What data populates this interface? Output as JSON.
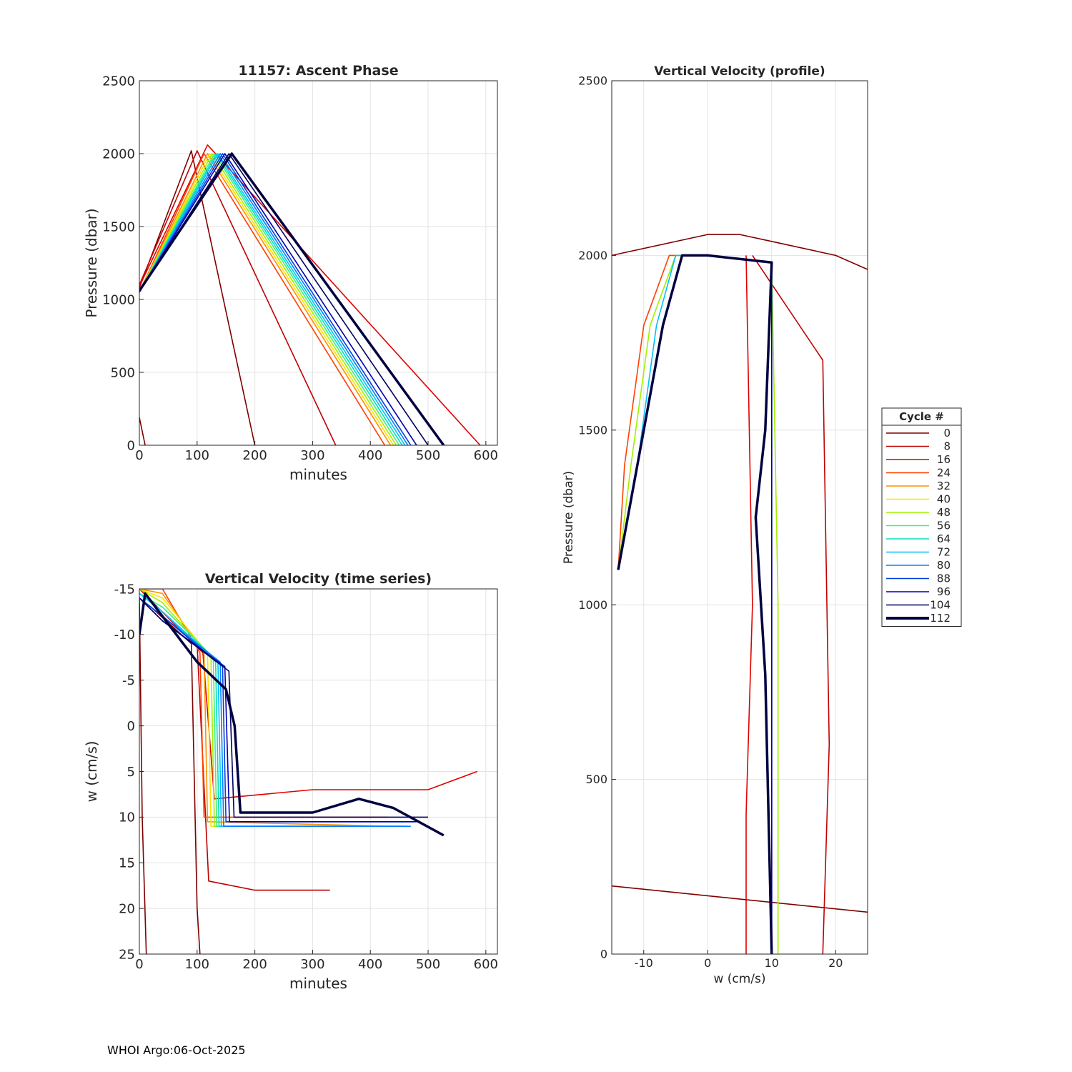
{
  "footer": "WHOI Argo:06-Oct-2025",
  "legend": {
    "title": "Cycle #",
    "entries": [
      "0",
      "8",
      "16",
      "24",
      "32",
      "40",
      "48",
      "56",
      "64",
      "72",
      "80",
      "88",
      "96",
      "104",
      "112"
    ],
    "colors": [
      "#800000",
      "#c00000",
      "#e00000",
      "#ff4000",
      "#ff9000",
      "#ffe000",
      "#a0f000",
      "#40f080",
      "#00e0c0",
      "#00c0ff",
      "#0080ff",
      "#0040e0",
      "#0000b0",
      "#000060",
      "#000040"
    ]
  },
  "chart_data": [
    {
      "type": "line",
      "title": "11157: Ascent Phase",
      "xlabel": "minutes",
      "ylabel": "Pressure (dbar)",
      "xlim": [
        0,
        620
      ],
      "ylim": [
        2500,
        0
      ],
      "xticks": [
        "0",
        "100",
        "200",
        "300",
        "400",
        "500",
        "600"
      ],
      "yticks": [
        "0",
        "500",
        "1000",
        "1500",
        "2000",
        "2500"
      ],
      "series": [
        {
          "name": "0",
          "x": [
            0,
            10
          ],
          "y": [
            190,
            0
          ]
        },
        {
          "name": "0",
          "x": [
            0,
            90,
            200
          ],
          "y": [
            1080,
            2020,
            0
          ]
        },
        {
          "name": "8",
          "x": [
            0,
            100,
            340
          ],
          "y": [
            1100,
            2020,
            0
          ]
        },
        {
          "name": "16",
          "x": [
            0,
            118,
            590
          ],
          "y": [
            1090,
            2060,
            0
          ]
        },
        {
          "name": "24",
          "x": [
            0,
            112,
            425
          ],
          "y": [
            1050,
            2000,
            0
          ]
        },
        {
          "name": "32",
          "x": [
            0,
            118,
            435
          ],
          "y": [
            1050,
            2000,
            0
          ]
        },
        {
          "name": "40",
          "x": [
            0,
            122,
            440
          ],
          "y": [
            1050,
            2000,
            0
          ]
        },
        {
          "name": "48",
          "x": [
            0,
            126,
            445
          ],
          "y": [
            1050,
            2000,
            0
          ]
        },
        {
          "name": "56",
          "x": [
            0,
            130,
            450
          ],
          "y": [
            1050,
            2000,
            0
          ]
        },
        {
          "name": "64",
          "x": [
            0,
            133,
            455
          ],
          "y": [
            1050,
            2000,
            0
          ]
        },
        {
          "name": "72",
          "x": [
            0,
            136,
            460
          ],
          "y": [
            1050,
            2000,
            0
          ]
        },
        {
          "name": "80",
          "x": [
            0,
            140,
            465
          ],
          "y": [
            1050,
            2000,
            0
          ]
        },
        {
          "name": "88",
          "x": [
            0,
            144,
            470
          ],
          "y": [
            1050,
            2000,
            0
          ]
        },
        {
          "name": "96",
          "x": [
            0,
            148,
            480
          ],
          "y": [
            1050,
            2000,
            0
          ]
        },
        {
          "name": "104",
          "x": [
            0,
            155,
            500
          ],
          "y": [
            1050,
            2000,
            0
          ]
        },
        {
          "name": "112",
          "x": [
            0,
            160,
            527
          ],
          "y": [
            1060,
            2000,
            0
          ]
        }
      ]
    },
    {
      "type": "line",
      "title": "Vertical Velocity (time series)",
      "xlabel": "minutes",
      "ylabel": "w (cm/s)",
      "xlim": [
        0,
        620
      ],
      "ylim": [
        -15,
        25
      ],
      "xticks": [
        "0",
        "100",
        "200",
        "300",
        "400",
        "500",
        "600"
      ],
      "yticks": [
        "-15",
        "-10",
        "-5",
        "0",
        "5",
        "10",
        "15",
        "20",
        "25"
      ],
      "series": [
        {
          "name": "0",
          "x": [
            0,
            5,
            12
          ],
          "y": [
            -14,
            10,
            25
          ]
        },
        {
          "name": "0",
          "x": [
            0,
            20,
            90,
            100,
            105
          ],
          "y": [
            -14,
            -13,
            -9,
            20,
            25
          ]
        },
        {
          "name": "8",
          "x": [
            0,
            100,
            120,
            200,
            330
          ],
          "y": [
            -14,
            -9,
            17,
            18,
            18
          ]
        },
        {
          "name": "16",
          "x": [
            0,
            110,
            130,
            300,
            500,
            585
          ],
          "y": [
            -15,
            -8,
            8,
            7,
            7,
            5
          ]
        },
        {
          "name": "24",
          "x": [
            0,
            40,
            105,
            112,
            430
          ],
          "y": [
            -15,
            -15,
            -8,
            10,
            10
          ]
        },
        {
          "name": "32",
          "x": [
            0,
            40,
            112,
            118,
            440
          ],
          "y": [
            -15,
            -14.5,
            -8,
            10.5,
            11
          ]
        },
        {
          "name": "40",
          "x": [
            0,
            40,
            118,
            124,
            445
          ],
          "y": [
            -15,
            -14,
            -8,
            11,
            11
          ]
        },
        {
          "name": "48",
          "x": [
            0,
            40,
            124,
            130,
            450
          ],
          "y": [
            -15,
            -13.5,
            -7.5,
            11,
            11
          ]
        },
        {
          "name": "56",
          "x": [
            0,
            40,
            128,
            134,
            455
          ],
          "y": [
            -14.5,
            -13,
            -7.5,
            11,
            11
          ]
        },
        {
          "name": "64",
          "x": [
            0,
            40,
            132,
            138,
            460
          ],
          "y": [
            -14.5,
            -12.5,
            -7,
            11,
            11
          ]
        },
        {
          "name": "72",
          "x": [
            0,
            40,
            136,
            142,
            465
          ],
          "y": [
            -14.5,
            -12.5,
            -7,
            11,
            11
          ]
        },
        {
          "name": "80",
          "x": [
            0,
            40,
            140,
            146,
            470
          ],
          "y": [
            -14,
            -12,
            -7,
            11,
            11
          ]
        },
        {
          "name": "88",
          "x": [
            0,
            40,
            144,
            150,
            475
          ],
          "y": [
            -14,
            -12,
            -6.5,
            10.5,
            10.5
          ]
        },
        {
          "name": "96",
          "x": [
            0,
            40,
            148,
            156,
            480
          ],
          "y": [
            -14,
            -11.5,
            -6.5,
            10.5,
            10.5
          ]
        },
        {
          "name": "104",
          "x": [
            0,
            40,
            155,
            164,
            500
          ],
          "y": [
            -14,
            -11.5,
            -6,
            10,
            10
          ]
        },
        {
          "name": "112",
          "x": [
            0,
            10,
            40,
            100,
            150,
            165,
            175,
            300,
            380,
            440,
            527
          ],
          "y": [
            -10,
            -14.5,
            -12,
            -7,
            -4,
            0,
            9.5,
            9.5,
            8,
            9,
            12
          ]
        }
      ]
    },
    {
      "type": "line",
      "title": "Vertical Velocity (profile)",
      "xlabel": "w (cm/s)",
      "ylabel": "Pressure (dbar)",
      "xlim": [
        -15,
        25
      ],
      "ylim": [
        2500,
        0
      ],
      "xticks": [
        "-10",
        "0",
        "10",
        "20"
      ],
      "yticks": [
        "0",
        "500",
        "1000",
        "1500",
        "2000",
        "2500"
      ],
      "series": [
        {
          "name": "0",
          "x": [
            -15,
            25
          ],
          "y": [
            195,
            120
          ]
        },
        {
          "name": "0",
          "x": [
            -15,
            0,
            5,
            10,
            20,
            25
          ],
          "y": [
            2000,
            2060,
            2060,
            2040,
            2000,
            1960
          ]
        },
        {
          "name": "8",
          "x": [
            7,
            18,
            19,
            18
          ],
          "y": [
            2000,
            1700,
            600,
            0
          ]
        },
        {
          "name": "16",
          "x": [
            6,
            7,
            6,
            6
          ],
          "y": [
            2000,
            1000,
            400,
            0
          ]
        },
        {
          "name": "24",
          "x": [
            -14,
            -13,
            -10,
            -6,
            0,
            10,
            10,
            10
          ],
          "y": [
            1100,
            1400,
            1800,
            2000,
            2000,
            1980,
            1000,
            0
          ]
        },
        {
          "name": "48",
          "x": [
            -14,
            -12,
            -9,
            -5,
            0,
            10,
            11,
            11
          ],
          "y": [
            1100,
            1400,
            1800,
            2000,
            2000,
            1980,
            1000,
            0
          ]
        },
        {
          "name": "72",
          "x": [
            -14,
            -11,
            -8,
            -5,
            0,
            10,
            10,
            10
          ],
          "y": [
            1100,
            1400,
            1800,
            2000,
            2000,
            1980,
            1000,
            0
          ]
        },
        {
          "name": "96",
          "x": [
            -14,
            -11,
            -7,
            -4,
            0,
            10,
            10,
            10
          ],
          "y": [
            1100,
            1400,
            1800,
            2000,
            2000,
            1980,
            1000,
            0
          ]
        },
        {
          "name": "112",
          "x": [
            -14,
            -12,
            -7,
            -4,
            0,
            10,
            9,
            7.5,
            9,
            10
          ],
          "y": [
            1100,
            1300,
            1800,
            2000,
            2000,
            1980,
            1500,
            1250,
            800,
            0
          ]
        }
      ]
    }
  ]
}
